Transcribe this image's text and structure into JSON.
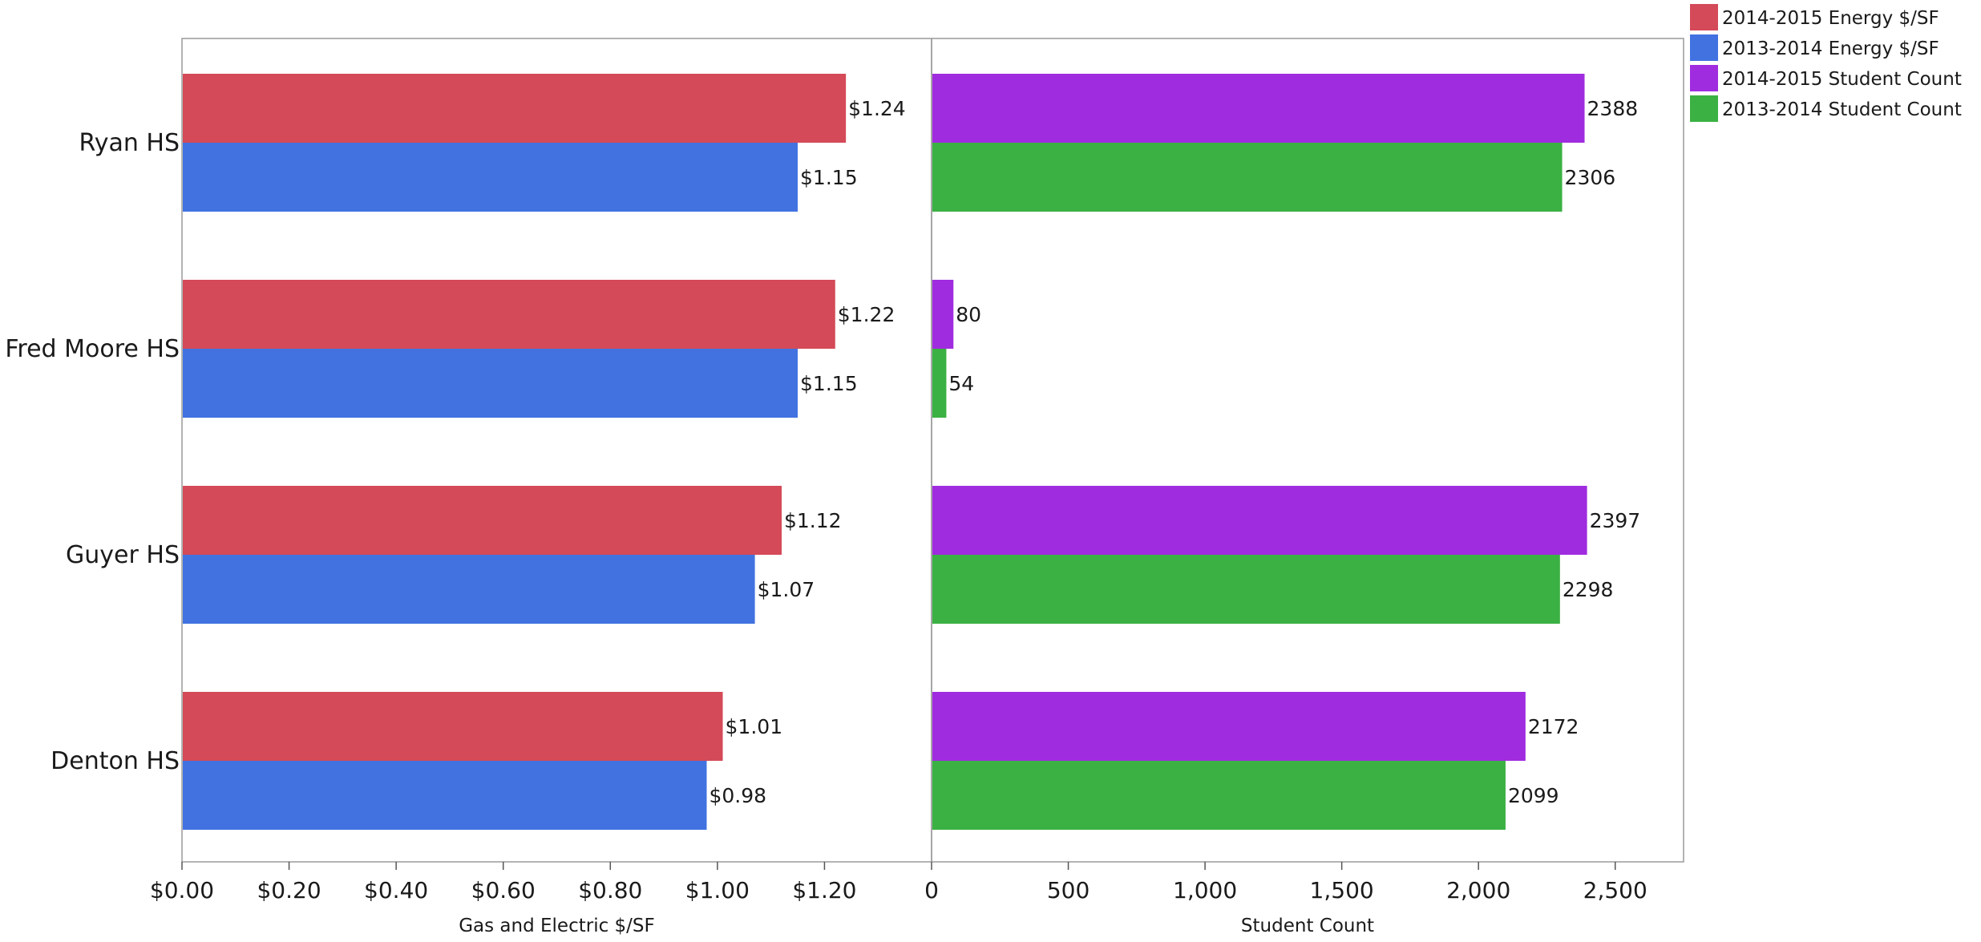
{
  "chart_data": [
    {
      "type": "bar",
      "orientation": "horizontal",
      "categories": [
        "Ryan HS",
        "Fred Moore HS",
        "Guyer HS",
        "Denton HS"
      ],
      "series": [
        {
          "name": "2014-2015 Energy $/SF",
          "values": [
            1.24,
            1.22,
            1.12,
            1.01
          ],
          "labels": [
            "$1.24",
            "$1.22",
            "$1.12",
            "$1.01"
          ],
          "color": "#d44a58"
        },
        {
          "name": "2013-2014 Energy $/SF",
          "values": [
            1.15,
            1.15,
            1.07,
            0.98
          ],
          "labels": [
            "$1.15",
            "$1.15",
            "$1.07",
            "$0.98"
          ],
          "color": "#4172e0"
        }
      ],
      "xlabel": "Gas and Electric $/SF",
      "xlim": [
        0,
        1.4
      ],
      "ticks": [
        0,
        0.2,
        0.4,
        0.6,
        0.8,
        1.0,
        1.2
      ],
      "tick_labels": [
        "$0.00",
        "$0.20",
        "$0.40",
        "$0.60",
        "$0.80",
        "$1.00",
        "$1.20"
      ]
    },
    {
      "type": "bar",
      "orientation": "horizontal",
      "categories": [
        "Ryan HS",
        "Fred Moore HS",
        "Guyer HS",
        "Denton HS"
      ],
      "series": [
        {
          "name": "2014-2015 Student Count",
          "values": [
            2388,
            80,
            2397,
            2172
          ],
          "labels": [
            "2388",
            "80",
            "2397",
            "2172"
          ],
          "color": "#a02cdf"
        },
        {
          "name": "2013-2014 Student Count",
          "values": [
            2306,
            54,
            2298,
            2099
          ],
          "labels": [
            "2306",
            "54",
            "2298",
            "2099"
          ],
          "color": "#3bb143"
        }
      ],
      "xlabel": "Student Count",
      "xlim": [
        0,
        2750
      ],
      "ticks": [
        0,
        500,
        1000,
        1500,
        2000,
        2500
      ],
      "tick_labels": [
        "0",
        "500",
        "1,000",
        "1,500",
        "2,000",
        "2,500"
      ]
    }
  ],
  "legend": {
    "position": "top-right",
    "items": [
      {
        "label": "2014-2015 Energy $/SF",
        "color": "#d44a58"
      },
      {
        "label": "2013-2014 Energy $/SF",
        "color": "#4172e0"
      },
      {
        "label": "2014-2015 Student Count",
        "color": "#a02cdf"
      },
      {
        "label": "2013-2014 Student Count",
        "color": "#3bb143"
      }
    ]
  }
}
